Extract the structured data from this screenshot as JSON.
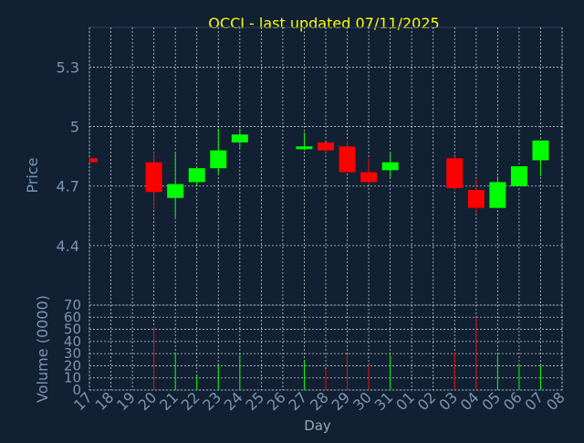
{
  "colors": {
    "background": "#112033",
    "title": "#ffff00",
    "axis_text": "#7d95b0",
    "grid": "#ffffff",
    "up": "#00ff00",
    "down": "#ff0000"
  },
  "chart_data": [
    {
      "type": "candlestick",
      "title": "OCCI - last updated 07/11/2025",
      "ylabel": "Price",
      "xlabel": "",
      "ylim": [
        4.1,
        5.5
      ],
      "yticks": [
        "5.3",
        "5",
        "4.7",
        "4.4"
      ],
      "ytick_values": [
        5.3,
        5.0,
        4.7,
        4.4
      ],
      "grid": true,
      "x": [
        "17",
        "18",
        "19",
        "20",
        "21",
        "22",
        "23",
        "24",
        "25",
        "26",
        "27",
        "28",
        "29",
        "30",
        "31",
        "01",
        "02",
        "03",
        "04",
        "05",
        "06",
        "07",
        "08"
      ],
      "candles": [
        {
          "day": "17",
          "open": 4.84,
          "close": 4.82,
          "high": 4.84,
          "low": 4.82
        },
        {
          "day": "20",
          "open": 4.82,
          "close": 4.67,
          "high": 4.87,
          "low": 4.58
        },
        {
          "day": "21",
          "open": 4.64,
          "close": 4.71,
          "high": 4.87,
          "low": 4.54
        },
        {
          "day": "22",
          "open": 4.72,
          "close": 4.79,
          "high": 4.79,
          "low": 4.7
        },
        {
          "day": "23",
          "open": 4.79,
          "close": 4.88,
          "high": 4.99,
          "low": 4.76
        },
        {
          "day": "24",
          "open": 4.92,
          "close": 4.96,
          "high": 4.99,
          "low": 4.89
        },
        {
          "day": "27",
          "open": 4.89,
          "close": 4.9,
          "high": 4.97,
          "low": 4.88
        },
        {
          "day": "28",
          "open": 4.92,
          "close": 4.88,
          "high": 4.92,
          "low": 4.87
        },
        {
          "day": "29",
          "open": 4.9,
          "close": 4.77,
          "high": 4.93,
          "low": 4.77
        },
        {
          "day": "30",
          "open": 4.77,
          "close": 4.72,
          "high": 4.84,
          "low": 4.71
        },
        {
          "day": "31",
          "open": 4.78,
          "close": 4.82,
          "high": 4.87,
          "low": 4.74
        },
        {
          "day": "03",
          "open": 4.84,
          "close": 4.69,
          "high": 4.85,
          "low": 4.68
        },
        {
          "day": "04",
          "open": 4.68,
          "close": 4.59,
          "high": 4.74,
          "low": 4.56
        },
        {
          "day": "05",
          "open": 4.59,
          "close": 4.72,
          "high": 4.75,
          "low": 4.59
        },
        {
          "day": "06",
          "open": 4.7,
          "close": 4.8,
          "high": 4.8,
          "low": 4.7
        },
        {
          "day": "07",
          "open": 4.83,
          "close": 4.93,
          "high": 4.93,
          "low": 4.75
        }
      ]
    },
    {
      "type": "bar",
      "title": "",
      "ylabel": "Volume (0000)",
      "xlabel": "Day",
      "ylim": [
        0,
        70
      ],
      "yticks": [
        "70",
        "60",
        "50",
        "40",
        "30",
        "20",
        "10",
        "0"
      ],
      "ytick_values": [
        70,
        60,
        50,
        40,
        30,
        20,
        10,
        0
      ],
      "grid": true,
      "categories": [
        "17",
        "18",
        "19",
        "20",
        "21",
        "22",
        "23",
        "24",
        "25",
        "26",
        "27",
        "28",
        "29",
        "30",
        "31",
        "01",
        "02",
        "03",
        "04",
        "05",
        "06",
        "07",
        "08"
      ],
      "bars": [
        {
          "day": "17",
          "value": 0,
          "direction": "down"
        },
        {
          "day": "20",
          "value": 52,
          "direction": "down"
        },
        {
          "day": "21",
          "value": 31,
          "direction": "up"
        },
        {
          "day": "22",
          "value": 12,
          "direction": "up"
        },
        {
          "day": "23",
          "value": 21,
          "direction": "up"
        },
        {
          "day": "24",
          "value": 29,
          "direction": "up"
        },
        {
          "day": "27",
          "value": 25,
          "direction": "up"
        },
        {
          "day": "28",
          "value": 17,
          "direction": "down"
        },
        {
          "day": "29",
          "value": 29,
          "direction": "down"
        },
        {
          "day": "30",
          "value": 21,
          "direction": "down"
        },
        {
          "day": "31",
          "value": 29,
          "direction": "up"
        },
        {
          "day": "03",
          "value": 31,
          "direction": "down"
        },
        {
          "day": "04",
          "value": 60,
          "direction": "down"
        },
        {
          "day": "05",
          "value": 29,
          "direction": "up"
        },
        {
          "day": "06",
          "value": 21,
          "direction": "up"
        },
        {
          "day": "07",
          "value": 20,
          "direction": "up"
        }
      ]
    }
  ]
}
